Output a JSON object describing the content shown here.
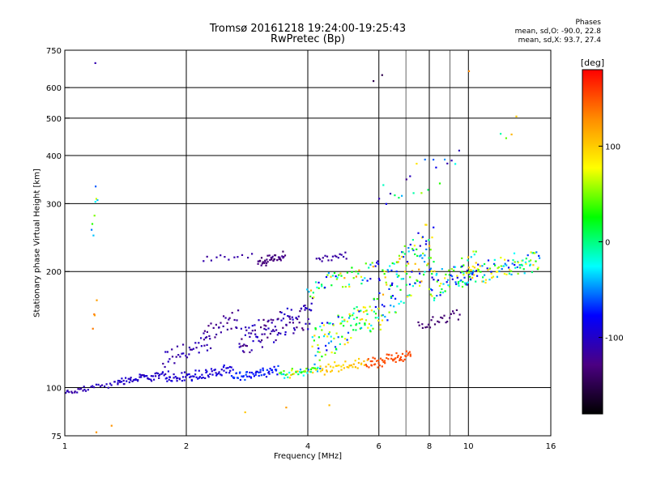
{
  "colors": {
    "grid": "#000000",
    "background": "#ffffff"
  },
  "chart_data": {
    "type": "scatter",
    "title": [
      "Tromsø 20161218 19:24:00-19:25:43",
      "RwPretec (Bp)"
    ],
    "stats": {
      "heading": "Phases",
      "o_mode": "mean, sd,O: -90.0, 22.8",
      "x_mode": "mean, sd,X:  93.7, 27.4"
    },
    "xlabel": "Frequency [MHz]",
    "ylabel": "Stationary phase Virtual Height [km]",
    "x_scale": "log",
    "y_scale": "log",
    "xlim": [
      1,
      16
    ],
    "ylim": [
      75,
      750
    ],
    "x_ticks": [
      1,
      2,
      4,
      6,
      8,
      10,
      16
    ],
    "y_ticks": [
      75,
      100,
      200,
      300,
      400,
      500,
      600,
      750
    ],
    "x_gridlines": [
      2,
      4,
      6,
      8,
      10
    ],
    "x_minor_gridlines": [
      7,
      9
    ],
    "y_gridlines": [
      100,
      200,
      300,
      400,
      500,
      600
    ],
    "grid": true,
    "colorbar": {
      "label": "[deg]",
      "range": [
        -180,
        180
      ],
      "ticks": [
        -100,
        0,
        100
      ],
      "colormap": [
        "#000000",
        "#4b0082",
        "#0000ff",
        "#00ffff",
        "#00ff00",
        "#ffff00",
        "#ff8c00",
        "#ff0000"
      ]
    },
    "color_meaning": "echo phase in degrees",
    "clusters": [
      {
        "x": [
          1.0,
          1.12
        ],
        "y": [
          96,
          100
        ],
        "phase": [
          -95,
          -120
        ],
        "n": 14
      },
      {
        "x": [
          1.12,
          1.35
        ],
        "y": [
          98,
          104
        ],
        "phase": [
          -100,
          -110
        ],
        "n": 18
      },
      {
        "x": [
          1.35,
          1.8
        ],
        "y": [
          102,
          110
        ],
        "phase": [
          -110,
          -90
        ],
        "n": 55
      },
      {
        "x": [
          1.8,
          2.6
        ],
        "y": [
          103,
          114
        ],
        "phase": [
          -105,
          -85
        ],
        "n": 70
      },
      {
        "x": [
          2.6,
          3.4
        ],
        "y": [
          104,
          114
        ],
        "phase": [
          -90,
          -60
        ],
        "n": 55
      },
      {
        "x": [
          3.4,
          4.3
        ],
        "y": [
          106,
          114
        ],
        "phase": [
          -60,
          110
        ],
        "n": 45
      },
      {
        "x": [
          4.3,
          5.6
        ],
        "y": [
          108,
          120
        ],
        "phase": [
          110,
          90
        ],
        "n": 40
      },
      {
        "x": [
          5.6,
          7.2
        ],
        "y": [
          112,
          125
        ],
        "phase": [
          150,
          155
        ],
        "n": 55
      },
      {
        "x": [
          1.75,
          2.3
        ],
        "y": [
          112,
          140
        ],
        "phase": [
          -100,
          -120
        ],
        "n": 35
      },
      {
        "x": [
          2.2,
          2.7
        ],
        "y": [
          130,
          160
        ],
        "phase": [
          -110,
          -130
        ],
        "n": 30
      },
      {
        "x": [
          2.7,
          4.1
        ],
        "y": [
          120,
          170
        ],
        "phase": [
          -95,
          -135
        ],
        "n": 110
      },
      {
        "x": [
          4.1,
          6.0
        ],
        "y": [
          115,
          175
        ],
        "phase": [
          -90,
          100
        ],
        "n": 110
      },
      {
        "x": [
          3.0,
          3.5
        ],
        "y": [
          205,
          225
        ],
        "phase": [
          -120,
          -140
        ],
        "n": 40
      },
      {
        "x": [
          2.2,
          2.9
        ],
        "y": [
          212,
          222
        ],
        "phase": [
          -120,
          -110
        ],
        "n": 12
      },
      {
        "x": [
          4.2,
          5.0
        ],
        "y": [
          210,
          225
        ],
        "phase": [
          -110,
          -120
        ],
        "n": 18
      },
      {
        "x": [
          4.0,
          6.0
        ],
        "y": [
          170,
          215
        ],
        "phase": [
          -100,
          130
        ],
        "n": 55
      },
      {
        "x": [
          6.0,
          8.2
        ],
        "y": [
          140,
          280
        ],
        "phase": [
          -110,
          120
        ],
        "n": 130
      },
      {
        "x": [
          7.5,
          9.5
        ],
        "y": [
          140,
          160
        ],
        "phase": [
          -130,
          -140
        ],
        "n": 25
      },
      {
        "x": [
          8.0,
          10.5
        ],
        "y": [
          165,
          230
        ],
        "phase": [
          -100,
          100
        ],
        "n": 70
      },
      {
        "x": [
          9.5,
          15.0
        ],
        "y": [
          180,
          230
        ],
        "phase": [
          -90,
          110
        ],
        "n": 110
      },
      {
        "x": [
          6.0,
          9.5
        ],
        "y": [
          280,
          430
        ],
        "phase": [
          -130,
          120
        ],
        "n": 22
      },
      {
        "x": [
          1.17,
          1.2
        ],
        "y": [
          220,
          360
        ],
        "phase": [
          -100,
          70
        ],
        "n": 8
      },
      {
        "x": [
          1.17,
          1.2
        ],
        "y": [
          130,
          180
        ],
        "phase": [
          120,
          140
        ],
        "n": 4
      },
      {
        "x": [
          1.17,
          1.2
        ],
        "y": [
          690,
          700
        ],
        "phase": [
          -110,
          -110
        ],
        "n": 1
      },
      {
        "x": [
          5.8,
          6.1
        ],
        "y": [
          620,
          650
        ],
        "phase": [
          -150,
          -150
        ],
        "n": 2
      },
      {
        "x": [
          9.8,
          10.2
        ],
        "y": [
          660,
          670
        ],
        "phase": [
          130,
          130
        ],
        "n": 1
      },
      {
        "x": [
          12.0,
          13.2
        ],
        "y": [
          420,
          530
        ],
        "phase": [
          -60,
          110
        ],
        "n": 4
      },
      {
        "x": [
          1.2,
          1.3
        ],
        "y": [
          75,
          80
        ],
        "phase": [
          120,
          130
        ],
        "n": 2
      },
      {
        "x": [
          2.8,
          4.5
        ],
        "y": [
          82,
          92
        ],
        "phase": [
          150,
          100
        ],
        "n": 3
      }
    ]
  }
}
